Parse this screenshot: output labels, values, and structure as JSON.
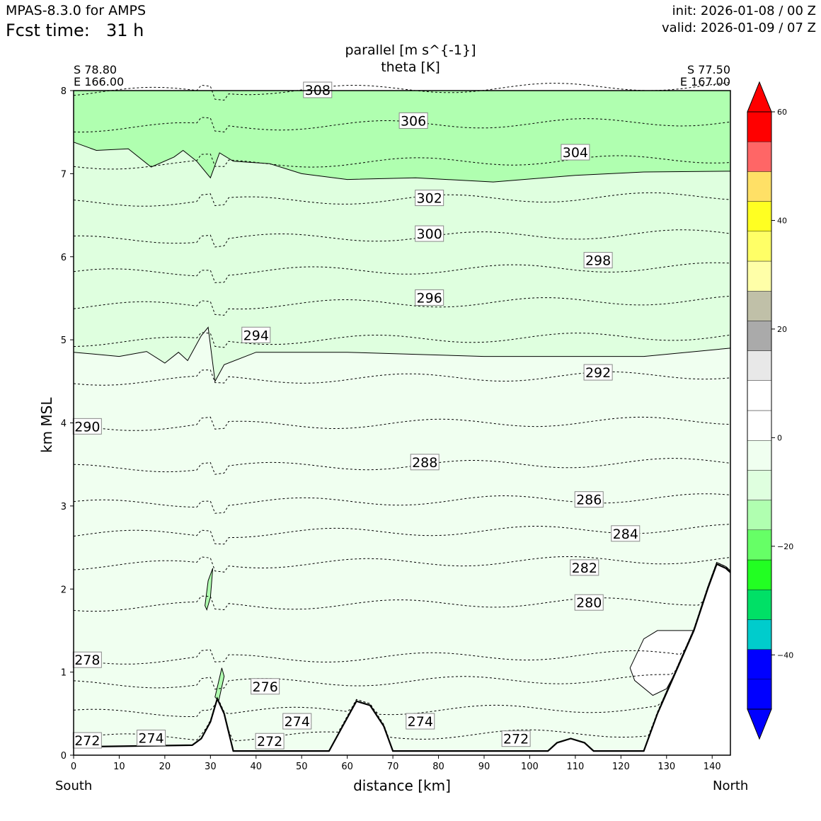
{
  "header": {
    "model": "MPAS-8.3.0 for AMPS",
    "fcst_label": "Fcst time:",
    "fcst_value": "31 h",
    "init": "init: 2026-01-08 / 00 Z",
    "valid": "valid: 2026-01-09 / 07 Z"
  },
  "chart_data": {
    "type": "contour",
    "title": "parallel [m s^{-1}]",
    "subtitle": "theta [K]",
    "left_end": {
      "lat": "S 78.80",
      "lon": "E 166.00"
    },
    "right_end": {
      "lat": "S 77.50",
      "lon": "E 167.00"
    },
    "xlabel": "distance [km]",
    "ylabel": "km MSL",
    "xlim": [
      0,
      144
    ],
    "ylim": [
      0,
      8
    ],
    "x_ticks": [
      "0",
      "10",
      "20",
      "30",
      "40",
      "50",
      "60",
      "70",
      "80",
      "90",
      "100",
      "110",
      "120",
      "130",
      "140"
    ],
    "y_ticks": [
      "0",
      "1",
      "2",
      "3",
      "4",
      "5",
      "6",
      "7",
      "8"
    ],
    "x_end_labels": {
      "left": "South",
      "right": "North"
    },
    "terrain": [
      [
        0,
        0.1
      ],
      [
        26,
        0.12
      ],
      [
        28,
        0.2
      ],
      [
        30,
        0.4
      ],
      [
        31.5,
        0.68
      ],
      [
        33,
        0.5
      ],
      [
        35,
        0.05
      ],
      [
        56,
        0.05
      ],
      [
        59,
        0.35
      ],
      [
        62,
        0.65
      ],
      [
        65,
        0.6
      ],
      [
        68,
        0.35
      ],
      [
        70,
        0.05
      ],
      [
        104,
        0.05
      ],
      [
        106,
        0.15
      ],
      [
        109,
        0.2
      ],
      [
        112,
        0.15
      ],
      [
        114,
        0.05
      ],
      [
        125,
        0.05
      ],
      [
        128,
        0.5
      ],
      [
        132,
        1.0
      ],
      [
        136,
        1.5
      ],
      [
        139,
        2.0
      ],
      [
        141,
        2.3
      ],
      [
        143,
        2.25
      ],
      [
        144,
        2.2
      ]
    ],
    "shading": {
      "wind_band_-10_-5": "#dfffdf",
      "wind_band_-15_-10": "#b0ffb0",
      "wind_band_-5_0": "#f0fff0",
      "band_-15_-10_lower_edge_km": [
        [
          0,
          7.38
        ],
        [
          5,
          7.28
        ],
        [
          12,
          7.3
        ],
        [
          17,
          7.08
        ],
        [
          22,
          7.2
        ],
        [
          24,
          7.28
        ],
        [
          27,
          7.15
        ],
        [
          30,
          6.95
        ],
        [
          32,
          7.25
        ],
        [
          35,
          7.15
        ],
        [
          43,
          7.12
        ],
        [
          50,
          7.0
        ],
        [
          60,
          6.93
        ],
        [
          75,
          6.95
        ],
        [
          92,
          6.9
        ],
        [
          110,
          6.98
        ],
        [
          125,
          7.02
        ],
        [
          144,
          7.03
        ]
      ],
      "band_-10_-5_lower_edge_km": [
        [
          0,
          4.85
        ],
        [
          10,
          4.8
        ],
        [
          16,
          4.86
        ],
        [
          20,
          4.72
        ],
        [
          23,
          4.85
        ],
        [
          25,
          4.75
        ],
        [
          28,
          5.05
        ],
        [
          29.5,
          5.15
        ],
        [
          31,
          4.5
        ],
        [
          33,
          4.7
        ],
        [
          40,
          4.85
        ],
        [
          60,
          4.85
        ],
        [
          90,
          4.8
        ],
        [
          110,
          4.8
        ],
        [
          125,
          4.8
        ],
        [
          144,
          4.9
        ]
      ]
    },
    "theta_contour_levels_K": [
      272,
      274,
      276,
      278,
      280,
      282,
      284,
      286,
      288,
      290,
      292,
      294,
      296,
      298,
      300,
      302,
      304,
      306,
      308
    ],
    "theta_contours_km": [
      {
        "level": 272,
        "z": 0.2
      },
      {
        "level": 274,
        "z": 0.5
      },
      {
        "level": 276,
        "z": 0.85
      },
      {
        "level": 278,
        "z": 1.14
      },
      {
        "level": 280,
        "z": 1.78
      },
      {
        "level": 282,
        "z": 2.28
      },
      {
        "level": 284,
        "z": 2.65
      },
      {
        "level": 286,
        "z": 3.02
      },
      {
        "level": 288,
        "z": 3.45
      },
      {
        "level": 290,
        "z": 3.95
      },
      {
        "level": 292,
        "z": 4.5
      },
      {
        "level": 294,
        "z": 4.97
      },
      {
        "level": 296,
        "z": 5.4
      },
      {
        "level": 298,
        "z": 5.8
      },
      {
        "level": 300,
        "z": 6.2
      },
      {
        "level": 302,
        "z": 6.65
      },
      {
        "level": 304,
        "z": 7.1
      },
      {
        "level": 306,
        "z": 7.55
      },
      {
        "level": 308,
        "z": 7.98
      }
    ],
    "contour_labels": [
      {
        "text": "308",
        "x": 53.5,
        "y": 8.0
      },
      {
        "text": "306",
        "x": 74.5,
        "y": 7.63
      },
      {
        "text": "304",
        "x": 110,
        "y": 7.25
      },
      {
        "text": "302",
        "x": 78,
        "y": 6.7
      },
      {
        "text": "300",
        "x": 78,
        "y": 6.27
      },
      {
        "text": "298",
        "x": 115,
        "y": 5.95
      },
      {
        "text": "296",
        "x": 78,
        "y": 5.5
      },
      {
        "text": "294",
        "x": 40,
        "y": 5.05
      },
      {
        "text": "292",
        "x": 115,
        "y": 4.6
      },
      {
        "text": "290",
        "x": 3,
        "y": 3.95
      },
      {
        "text": "288",
        "x": 77,
        "y": 3.52
      },
      {
        "text": "286",
        "x": 113,
        "y": 3.07
      },
      {
        "text": "284",
        "x": 121,
        "y": 2.66
      },
      {
        "text": "282",
        "x": 112,
        "y": 2.25
      },
      {
        "text": "280",
        "x": 113,
        "y": 1.83
      },
      {
        "text": "278",
        "x": 3,
        "y": 1.14
      },
      {
        "text": "276",
        "x": 42,
        "y": 0.82
      },
      {
        "text": "274",
        "x": 49,
        "y": 0.4
      },
      {
        "text": "274",
        "x": 76,
        "y": 0.4
      },
      {
        "text": "274",
        "x": 17,
        "y": 0.2
      },
      {
        "text": "272",
        "x": 3,
        "y": 0.17
      },
      {
        "text": "272",
        "x": 43,
        "y": 0.16
      },
      {
        "text": "272",
        "x": 97,
        "y": 0.19
      }
    ],
    "colorbar": {
      "ticks": [
        "60",
        "40",
        "20",
        "0",
        "−20",
        "−40"
      ],
      "tick_values": [
        60,
        40,
        20,
        0,
        -20,
        -40
      ],
      "range": [
        -50,
        60
      ],
      "colors": [
        "#0000ff",
        "#0000ff",
        "#00cccc",
        "#00e066",
        "#22ff22",
        "#66ff66",
        "#b0ffb0",
        "#dfffdf",
        "#f0fff0",
        "#ffffff",
        "#ffffff",
        "#e8e8e8",
        "#aaaaaa",
        "#c0c0a8",
        "#ffffa8",
        "#ffff66",
        "#ffff22",
        "#ffe066",
        "#ff6666",
        "#ff0000"
      ]
    }
  }
}
